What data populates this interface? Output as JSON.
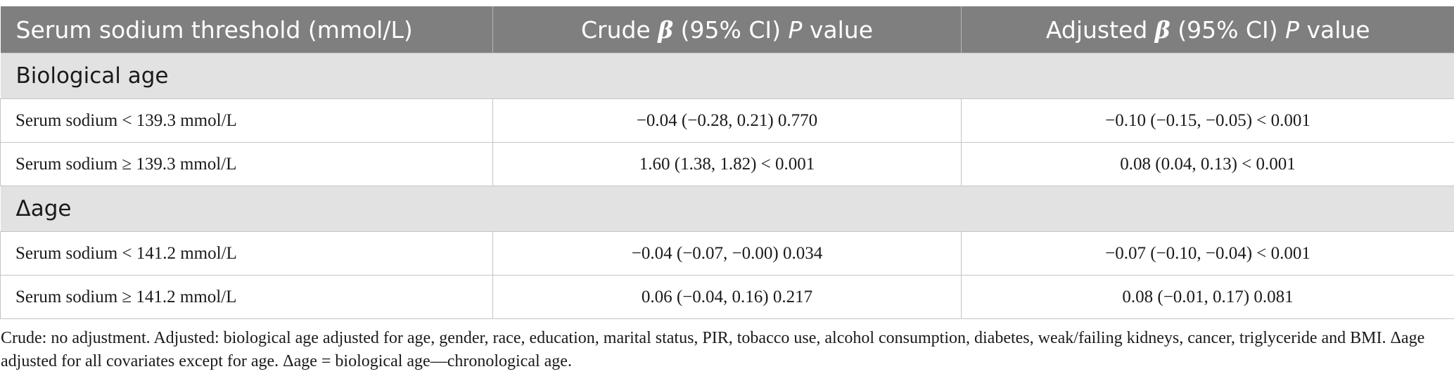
{
  "header": {
    "col1": "Serum sodium threshold (mmol/L)",
    "col2_pre": "Crude ",
    "col2_beta": "β",
    "col2_mid": " (95% CI) ",
    "col2_p": "P",
    "col2_post": " value",
    "col3_pre": "Adjusted ",
    "col3_beta": "β",
    "col3_mid": " (95% CI) ",
    "col3_p": "P",
    "col3_post": " value"
  },
  "sections": [
    {
      "title": "Biological age",
      "rows": [
        {
          "threshold": "Serum sodium < 139.3 mmol/L",
          "crude": "−0.04 (−0.28, 0.21) 0.770",
          "adjusted": "−0.10 (−0.15, −0.05) < 0.001"
        },
        {
          "threshold": "Serum sodium ≥ 139.3 mmol/L",
          "crude": "1.60 (1.38, 1.82) < 0.001",
          "adjusted": "0.08 (0.04, 0.13) < 0.001"
        }
      ]
    },
    {
      "title": "Δage",
      "rows": [
        {
          "threshold": "Serum sodium < 141.2 mmol/L",
          "crude": "−0.04 (−0.07, −0.00) 0.034",
          "adjusted": "−0.07 (−0.10, −0.04) < 0.001"
        },
        {
          "threshold": "Serum sodium ≥ 141.2 mmol/L",
          "crude": "0.06 (−0.04, 0.16) 0.217",
          "adjusted": "0.08 (−0.01, 0.17) 0.081"
        }
      ]
    }
  ],
  "footnote": "Crude: no adjustment. Adjusted: biological age adjusted for age, gender, race, education, marital status, PIR, tobacco use, alcohol consumption, diabetes, weak/failing kidneys, cancer, triglyceride and BMI. Δage adjusted for all covariates except for age. Δage = biological age—chronological age."
}
